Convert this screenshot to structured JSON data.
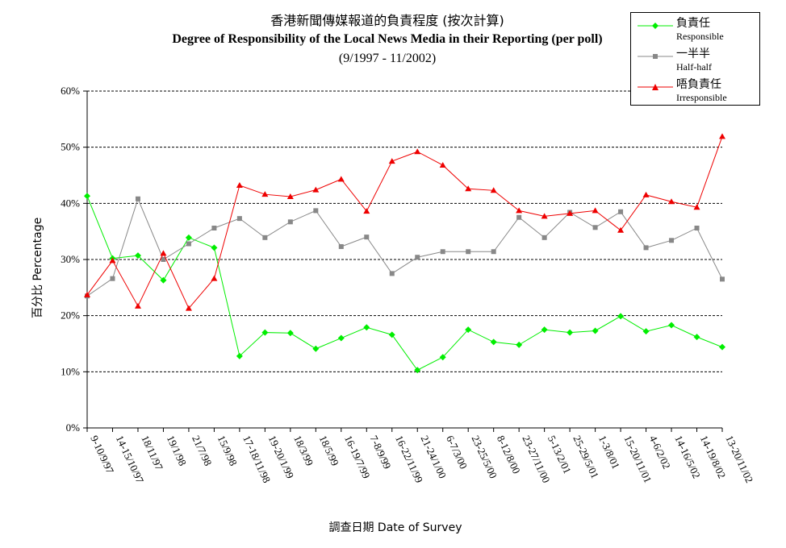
{
  "chart_data": {
    "type": "line",
    "title": "香港新聞傳媒報道的負責程度 (按次計算)",
    "subtitle": "Degree of Responsibility of the Local News Media in their Reporting (per poll)",
    "period": "(9/1997 - 11/2002)",
    "xlabel": "調查日期 Date of Survey",
    "ylabel": "百分比 Percentage",
    "ylim": [
      0,
      60
    ],
    "yticks": [
      "0%",
      "10%",
      "20%",
      "30%",
      "40%",
      "50%",
      "60%"
    ],
    "grid": "horizontal dashed",
    "legend_position": "top-right",
    "categories": [
      "9-10/9/97",
      "14-15/10/97",
      "18/11/97",
      "19/1/98",
      "21/7/98",
      "15/9/98",
      "17-18/11/98",
      "19-20/1/99",
      "18/3/99",
      "18/5/99",
      "16-19/7/99",
      "7-8/9/99",
      "16-22/11/99",
      "21-24/1/00",
      "6-7/3/00",
      "23-25/5/00",
      "8-12/8/00",
      "23-27/11/00",
      "5-13/2/01",
      "25-29/5/01",
      "1-3/8/01",
      "15-20/11/01",
      "4-6/2/02",
      "14-16/5/02",
      "14-19/8/02",
      "13-20/11/02"
    ],
    "series": [
      {
        "name_zh": "負責任",
        "name_en": "Responsible",
        "color": "#00ee00",
        "marker": "diamond",
        "values": [
          41.3,
          30.2,
          30.7,
          26.3,
          33.9,
          32.1,
          12.8,
          17.0,
          16.9,
          14.1,
          16.0,
          17.9,
          16.6,
          10.3,
          12.6,
          17.5,
          15.3,
          14.8,
          17.5,
          17.0,
          17.3,
          19.9,
          17.2,
          18.3,
          16.2,
          14.4
        ]
      },
      {
        "name_zh": "一半半",
        "name_en": "Half-half",
        "color": "#888888",
        "marker": "square",
        "values": [
          23.5,
          26.6,
          40.8,
          30.0,
          32.8,
          35.6,
          37.3,
          33.9,
          36.7,
          38.7,
          32.3,
          34.0,
          27.5,
          30.4,
          31.4,
          31.4,
          31.4,
          37.5,
          33.9,
          38.4,
          35.7,
          38.5,
          32.1,
          33.4,
          35.6,
          26.5
        ]
      },
      {
        "name_zh": "唔負責任",
        "name_en": "Irresponsible",
        "color": "#ee0000",
        "marker": "triangle",
        "values": [
          23.7,
          29.8,
          21.7,
          31.1,
          21.3,
          26.6,
          43.2,
          41.6,
          41.2,
          42.4,
          44.3,
          38.6,
          47.5,
          49.2,
          46.8,
          42.6,
          42.3,
          38.7,
          37.7,
          38.2,
          38.7,
          35.2,
          41.5,
          40.3,
          39.3,
          51.9
        ]
      }
    ]
  }
}
